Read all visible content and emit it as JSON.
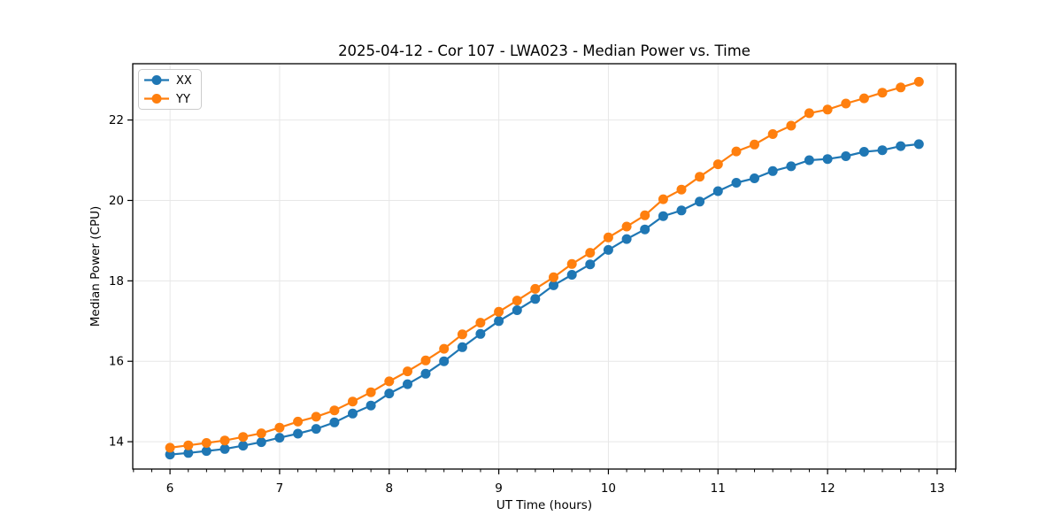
{
  "chart_data": {
    "type": "line",
    "title": "2025-04-12 - Cor 107 - LWA023 - Median Power vs. Time",
    "xlabel": "UT Time (hours)",
    "ylabel": "Median Power (CPU)",
    "xlim": [
      5.66,
      13.17
    ],
    "ylim": [
      13.32,
      23.4
    ],
    "x_major_ticks": [
      6,
      7,
      8,
      9,
      10,
      11,
      12,
      13
    ],
    "y_major_ticks": [
      14,
      16,
      18,
      20,
      22
    ],
    "x_minor_ticks_per_hour": 6,
    "grid": true,
    "grid_color": "#e7e7e7",
    "legend": {
      "position": "upper left"
    },
    "x": [
      6.0,
      6.167,
      6.333,
      6.5,
      6.667,
      6.833,
      7.0,
      7.167,
      7.333,
      7.5,
      7.667,
      7.833,
      8.0,
      8.167,
      8.333,
      8.5,
      8.667,
      8.833,
      9.0,
      9.167,
      9.333,
      9.5,
      9.667,
      9.833,
      10.0,
      10.167,
      10.333,
      10.5,
      10.667,
      10.833,
      11.0,
      11.167,
      11.333,
      11.5,
      11.667,
      11.833,
      12.0,
      12.167,
      12.333,
      12.5,
      12.667,
      12.833
    ],
    "series": [
      {
        "name": "XX",
        "color": "#1f77b4",
        "values": [
          13.68,
          13.72,
          13.77,
          13.82,
          13.9,
          13.99,
          14.1,
          14.2,
          14.32,
          14.48,
          14.7,
          14.9,
          15.2,
          15.43,
          15.69,
          16.0,
          16.35,
          16.68,
          17.0,
          17.27,
          17.55,
          17.89,
          18.15,
          18.41,
          18.77,
          19.04,
          19.28,
          19.61,
          19.75,
          19.97,
          20.23,
          20.44,
          20.55,
          20.73,
          20.85,
          21.0,
          21.03,
          21.1,
          21.21,
          21.25,
          21.35,
          21.4
        ]
      },
      {
        "name": "YY",
        "color": "#ff7f0e",
        "values": [
          13.85,
          13.91,
          13.97,
          14.03,
          14.12,
          14.21,
          14.35,
          14.5,
          14.62,
          14.78,
          15.0,
          15.23,
          15.5,
          15.75,
          16.02,
          16.31,
          16.67,
          16.96,
          17.23,
          17.51,
          17.8,
          18.09,
          18.42,
          18.7,
          19.08,
          19.35,
          19.63,
          20.03,
          20.27,
          20.59,
          20.9,
          21.22,
          21.39,
          21.65,
          21.86,
          22.17,
          22.26,
          22.41,
          22.54,
          22.68,
          22.81,
          22.95
        ]
      }
    ]
  }
}
